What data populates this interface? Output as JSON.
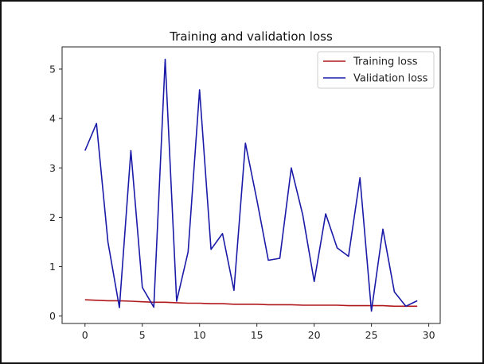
{
  "chart_data": {
    "type": "line",
    "title": "Training and validation loss",
    "xlabel": "",
    "ylabel": "",
    "xlim": [
      -2,
      31
    ],
    "ylim": [
      -0.15,
      5.45
    ],
    "xticks": [
      0,
      5,
      10,
      15,
      20,
      25,
      30
    ],
    "yticks": [
      0,
      1,
      2,
      3,
      4,
      5
    ],
    "legend_position": "top-right",
    "x": [
      0,
      1,
      2,
      3,
      4,
      5,
      6,
      7,
      8,
      9,
      10,
      11,
      12,
      13,
      14,
      15,
      16,
      17,
      18,
      19,
      20,
      21,
      22,
      23,
      24,
      25,
      26,
      27,
      28,
      29
    ],
    "series": [
      {
        "name": "Training loss",
        "color": "#b0181c",
        "values": [
          0.33,
          0.32,
          0.31,
          0.31,
          0.3,
          0.29,
          0.28,
          0.28,
          0.27,
          0.26,
          0.26,
          0.25,
          0.25,
          0.24,
          0.24,
          0.24,
          0.23,
          0.23,
          0.23,
          0.22,
          0.22,
          0.22,
          0.22,
          0.21,
          0.21,
          0.21,
          0.21,
          0.2,
          0.2,
          0.2
        ]
      },
      {
        "name": "Validation loss",
        "color": "#1a1aa8",
        "values": [
          3.35,
          3.9,
          1.5,
          0.17,
          3.35,
          0.58,
          0.18,
          5.2,
          0.3,
          1.3,
          4.58,
          1.35,
          1.67,
          0.52,
          3.5,
          2.35,
          1.13,
          1.17,
          3.0,
          2.05,
          0.7,
          2.07,
          1.38,
          1.21,
          2.8,
          0.1,
          1.76,
          0.49,
          0.2,
          0.31
        ]
      }
    ]
  }
}
